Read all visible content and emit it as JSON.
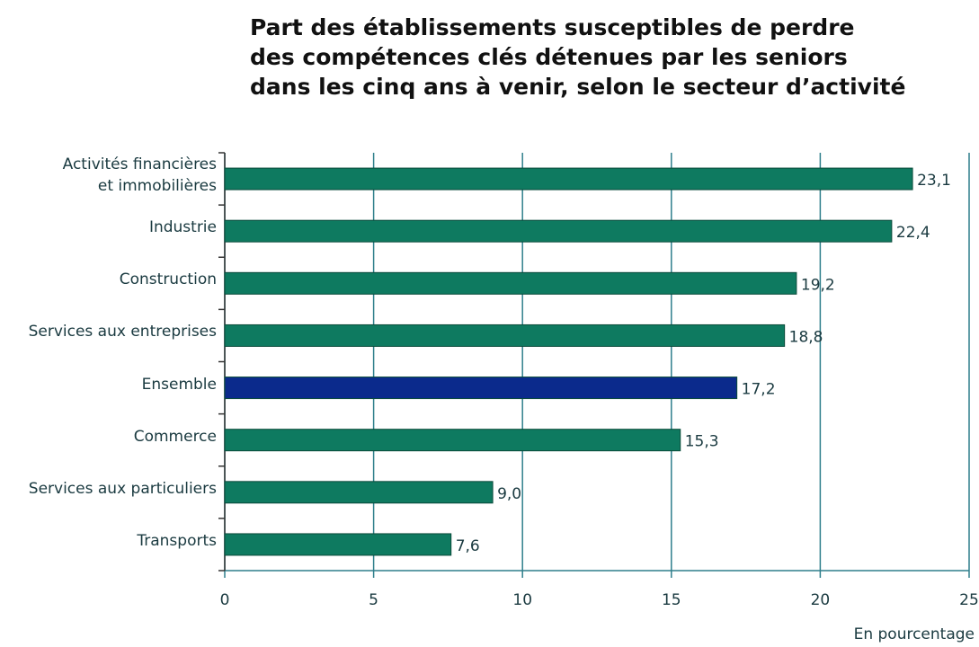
{
  "chart_data": {
    "type": "barh",
    "title": "Part des établissements susceptibles de perdre\ndes compétences clés détenues par les seniors\ndans les cinq ans à venir, selon le secteur d’activité",
    "categories": [
      "Activités financières\net immobilières",
      "Industrie",
      "Construction",
      "Services aux entreprises",
      "Ensemble",
      "Commerce",
      "Services aux particuliers",
      "Transports"
    ],
    "values": [
      23.1,
      22.4,
      19.2,
      18.8,
      17.2,
      15.3,
      9.0,
      7.6
    ],
    "value_labels": [
      "23,1",
      "22,4",
      "19,2",
      "18,8",
      "17,2",
      "15,3",
      "9,0",
      "7,6"
    ],
    "colors": [
      "#0e7a60",
      "#0e7a60",
      "#0e7a60",
      "#0e7a60",
      "#0b2a8c",
      "#0e7a60",
      "#0e7a60",
      "#0e7a60"
    ],
    "xlim": [
      0,
      25
    ],
    "xticks": [
      0,
      5,
      10,
      15,
      20,
      25
    ],
    "grid": true,
    "x_label": "En pourcentage"
  }
}
